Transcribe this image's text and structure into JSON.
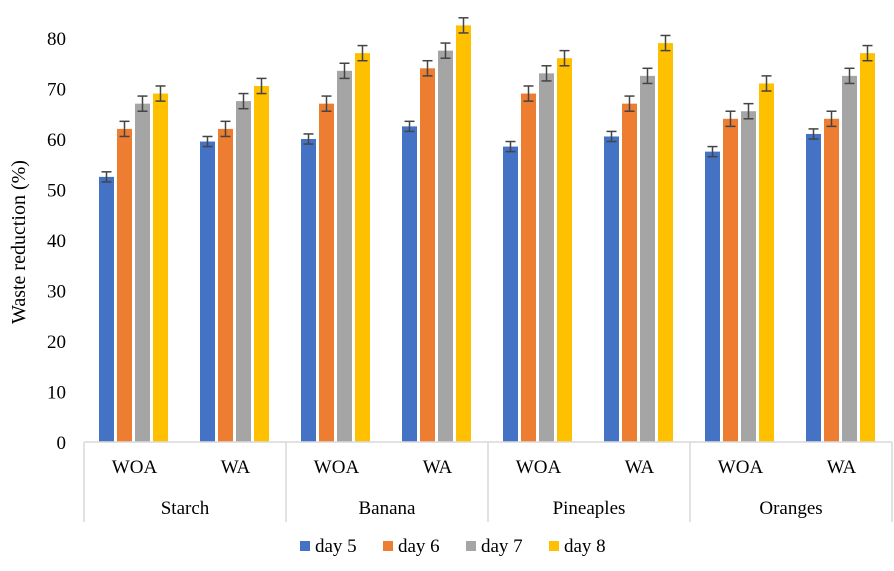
{
  "chart_data": {
    "type": "bar",
    "ylabel": "Waste reduction (%)",
    "xlabel": "",
    "ylim": [
      0,
      80
    ],
    "yticks": [
      0,
      10,
      20,
      30,
      40,
      50,
      60,
      70,
      80
    ],
    "grid": false,
    "legend_position": "bottom",
    "error_bars": true,
    "groups": [
      {
        "label": "Starch",
        "subcategories": [
          "WOA",
          "WA"
        ]
      },
      {
        "label": "Banana",
        "subcategories": [
          "WOA",
          "WA"
        ]
      },
      {
        "label": "Pineaples",
        "subcategories": [
          "WOA",
          "WA"
        ]
      },
      {
        "label": "Oranges",
        "subcategories": [
          "WOA",
          "WA"
        ]
      }
    ],
    "series": [
      {
        "name": "day 5",
        "color": "#4472C4",
        "values": [
          52.5,
          59.5,
          60.0,
          62.5,
          58.5,
          60.5,
          57.5,
          61.0
        ],
        "errors": [
          1.0,
          1.0,
          1.0,
          1.0,
          1.0,
          1.0,
          1.0,
          1.0
        ]
      },
      {
        "name": "day 6",
        "color": "#ED7D31",
        "values": [
          62.0,
          62.0,
          67.0,
          74.0,
          69.0,
          67.0,
          64.0,
          64.0
        ],
        "errors": [
          1.5,
          1.5,
          1.5,
          1.5,
          1.5,
          1.5,
          1.5,
          1.5
        ]
      },
      {
        "name": "day 7",
        "color": "#A5A5A5",
        "values": [
          67.0,
          67.5,
          73.5,
          77.5,
          73.0,
          72.5,
          65.5,
          72.5
        ],
        "errors": [
          1.5,
          1.5,
          1.5,
          1.5,
          1.5,
          1.5,
          1.5,
          1.5
        ]
      },
      {
        "name": "day 8",
        "color": "#FFC000",
        "values": [
          69.0,
          70.5,
          77.0,
          82.5,
          76.0,
          79.0,
          71.0,
          77.0
        ],
        "errors": [
          1.5,
          1.5,
          1.5,
          1.5,
          1.5,
          1.5,
          1.5,
          1.5
        ]
      }
    ]
  }
}
